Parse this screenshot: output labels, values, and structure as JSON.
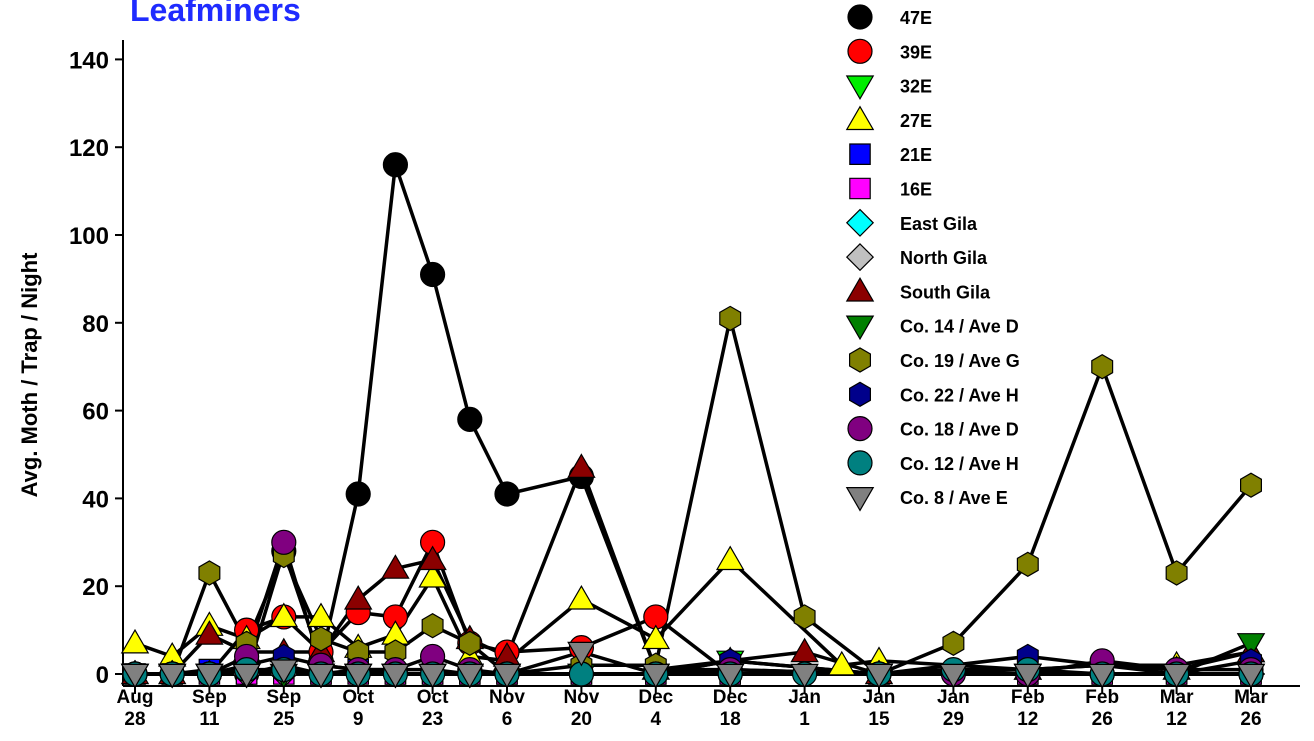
{
  "chart_data": {
    "type": "line",
    "title": "Leafminers",
    "ylabel": "Avg. Moth / Trap / Night",
    "xlabel": "",
    "ylim": [
      0,
      145
    ],
    "yticks": [
      0,
      20,
      40,
      60,
      80,
      100,
      120,
      140
    ],
    "grid": false,
    "legend_position": "top-right",
    "x_tick_labels": [
      {
        "pos": 0,
        "line1": "Aug",
        "line2": "28"
      },
      {
        "pos": 2,
        "line1": "Sep",
        "line2": "11"
      },
      {
        "pos": 4,
        "line1": "Sep",
        "line2": "25"
      },
      {
        "pos": 6,
        "line1": "Oct",
        "line2": "9"
      },
      {
        "pos": 8,
        "line1": "Oct",
        "line2": "23"
      },
      {
        "pos": 10,
        "line1": "Nov",
        "line2": "6"
      },
      {
        "pos": 12,
        "line1": "Nov",
        "line2": "20"
      },
      {
        "pos": 14,
        "line1": "Dec",
        "line2": "4"
      },
      {
        "pos": 16,
        "line1": "Dec",
        "line2": "18"
      },
      {
        "pos": 18,
        "line1": "Jan",
        "line2": "1"
      },
      {
        "pos": 20,
        "line1": "Jan",
        "line2": "15"
      },
      {
        "pos": 22,
        "line1": "Jan",
        "line2": "29"
      },
      {
        "pos": 24,
        "line1": "Feb",
        "line2": "12"
      },
      {
        "pos": 26,
        "line1": "Feb",
        "line2": "26"
      },
      {
        "pos": 28,
        "line1": "Mar",
        "line2": "12"
      },
      {
        "pos": 30,
        "line1": "Mar",
        "line2": "26"
      }
    ],
    "series": [
      {
        "name": "47E",
        "color": "#000000",
        "marker": "circle",
        "points": [
          [
            0,
            0
          ],
          [
            1,
            0
          ],
          [
            2,
            0
          ],
          [
            3,
            0
          ],
          [
            4,
            28
          ],
          [
            5,
            3
          ],
          [
            6,
            41
          ],
          [
            7,
            116
          ],
          [
            8,
            91
          ],
          [
            9,
            58
          ],
          [
            10,
            41
          ],
          [
            12,
            45
          ],
          [
            14,
            1
          ],
          [
            16,
            1
          ],
          [
            20,
            0
          ],
          [
            24,
            0
          ],
          [
            26,
            0
          ],
          [
            28,
            0
          ],
          [
            30,
            0
          ]
        ]
      },
      {
        "name": "39E",
        "color": "#ff0000",
        "marker": "circle",
        "points": [
          [
            0,
            0
          ],
          [
            1,
            0
          ],
          [
            2,
            0
          ],
          [
            3,
            10
          ],
          [
            4,
            13
          ],
          [
            5,
            5
          ],
          [
            6,
            14
          ],
          [
            7,
            13
          ],
          [
            8,
            30
          ],
          [
            9,
            7
          ],
          [
            10,
            5
          ],
          [
            12,
            6
          ],
          [
            14,
            13
          ],
          [
            16,
            0
          ],
          [
            20,
            0
          ],
          [
            24,
            0
          ],
          [
            26,
            0
          ],
          [
            28,
            0
          ],
          [
            30,
            0
          ]
        ]
      },
      {
        "name": "32E",
        "color": "#00ee00",
        "marker": "triangle-down",
        "points": [
          [
            0,
            0
          ],
          [
            1,
            0
          ],
          [
            2,
            0
          ],
          [
            3,
            0
          ],
          [
            4,
            1
          ],
          [
            5,
            0
          ],
          [
            6,
            0
          ],
          [
            7,
            0
          ],
          [
            8,
            0
          ],
          [
            9,
            0
          ],
          [
            10,
            0
          ],
          [
            12,
            0
          ],
          [
            14,
            0
          ],
          [
            16,
            3
          ],
          [
            20,
            0
          ],
          [
            24,
            0
          ],
          [
            26,
            0
          ],
          [
            28,
            0
          ],
          [
            30,
            0
          ]
        ]
      },
      {
        "name": "27E",
        "color": "#ffff00",
        "marker": "triangle-up",
        "points": [
          [
            0,
            7
          ],
          [
            1,
            4
          ],
          [
            2,
            11
          ],
          [
            3,
            8
          ],
          [
            4,
            13
          ],
          [
            5,
            13
          ],
          [
            6,
            6
          ],
          [
            7,
            9
          ],
          [
            8,
            22
          ],
          [
            9,
            4
          ],
          [
            10,
            3
          ],
          [
            12,
            17
          ],
          [
            14,
            8
          ],
          [
            16,
            26
          ],
          [
            19,
            2
          ],
          [
            20,
            3
          ],
          [
            24,
            1
          ],
          [
            26,
            2
          ],
          [
            28,
            2
          ],
          [
            30,
            5
          ]
        ]
      },
      {
        "name": "21E",
        "color": "#0000ff",
        "marker": "square",
        "points": [
          [
            0,
            0
          ],
          [
            1,
            0
          ],
          [
            2,
            1
          ],
          [
            3,
            0
          ],
          [
            4,
            2
          ],
          [
            5,
            0
          ],
          [
            6,
            1
          ],
          [
            7,
            0
          ],
          [
            8,
            0
          ],
          [
            9,
            0
          ],
          [
            10,
            0
          ],
          [
            12,
            0
          ],
          [
            14,
            0
          ],
          [
            16,
            0
          ],
          [
            20,
            0
          ],
          [
            24,
            0
          ],
          [
            26,
            0
          ],
          [
            28,
            0
          ],
          [
            30,
            0
          ]
        ]
      },
      {
        "name": "16E",
        "color": "#ff00ff",
        "marker": "square",
        "points": [
          [
            0,
            0
          ],
          [
            1,
            0
          ],
          [
            2,
            0
          ],
          [
            3,
            0
          ],
          [
            4,
            0
          ],
          [
            5,
            0
          ],
          [
            6,
            0
          ],
          [
            7,
            0
          ],
          [
            8,
            0
          ],
          [
            9,
            0
          ],
          [
            10,
            0
          ],
          [
            12,
            0
          ],
          [
            14,
            0
          ],
          [
            16,
            0
          ],
          [
            20,
            0
          ],
          [
            24,
            0
          ],
          [
            26,
            0
          ],
          [
            28,
            0
          ],
          [
            30,
            0
          ]
        ]
      },
      {
        "name": "East Gila",
        "color": "#00ffff",
        "marker": "diamond",
        "points": [
          [
            0,
            0
          ],
          [
            1,
            0
          ],
          [
            2,
            0
          ],
          [
            3,
            0
          ],
          [
            4,
            0
          ],
          [
            5,
            0
          ],
          [
            6,
            0
          ],
          [
            7,
            0
          ],
          [
            8,
            0
          ],
          [
            9,
            0
          ],
          [
            10,
            0
          ],
          [
            12,
            0
          ],
          [
            14,
            0
          ],
          [
            16,
            0
          ],
          [
            20,
            0
          ],
          [
            24,
            0
          ],
          [
            26,
            0
          ],
          [
            28,
            0
          ],
          [
            30,
            0
          ]
        ]
      },
      {
        "name": "North Gila",
        "color": "#c0c0c0",
        "marker": "diamond",
        "points": [
          [
            0,
            0
          ],
          [
            1,
            0
          ],
          [
            2,
            0
          ],
          [
            3,
            0
          ],
          [
            4,
            0
          ],
          [
            5,
            0
          ],
          [
            6,
            0
          ],
          [
            7,
            0
          ],
          [
            8,
            0
          ],
          [
            9,
            0
          ],
          [
            10,
            0
          ],
          [
            12,
            0
          ],
          [
            14,
            0
          ],
          [
            16,
            0
          ],
          [
            20,
            0
          ],
          [
            24,
            0
          ],
          [
            26,
            0
          ],
          [
            28,
            0
          ],
          [
            30,
            0
          ]
        ]
      },
      {
        "name": "South Gila",
        "color": "#8b0000",
        "marker": "triangle-up",
        "points": [
          [
            0,
            0
          ],
          [
            1,
            0
          ],
          [
            2,
            9
          ],
          [
            3,
            5
          ],
          [
            4,
            5
          ],
          [
            5,
            5
          ],
          [
            6,
            17
          ],
          [
            7,
            24
          ],
          [
            8,
            26
          ],
          [
            9,
            8
          ],
          [
            10,
            4
          ],
          [
            12,
            47
          ],
          [
            14,
            1
          ],
          [
            16,
            3
          ],
          [
            18,
            5
          ],
          [
            20,
            0
          ],
          [
            24,
            1
          ],
          [
            26,
            2
          ],
          [
            28,
            1
          ],
          [
            30,
            5
          ]
        ]
      },
      {
        "name": "Co. 14 / Ave D",
        "color": "#008000",
        "marker": "triangle-down",
        "points": [
          [
            0,
            0
          ],
          [
            1,
            0
          ],
          [
            2,
            0
          ],
          [
            3,
            0
          ],
          [
            4,
            0
          ],
          [
            5,
            0
          ],
          [
            6,
            0
          ],
          [
            7,
            0
          ],
          [
            8,
            0
          ],
          [
            9,
            0
          ],
          [
            10,
            0
          ],
          [
            12,
            0
          ],
          [
            14,
            0
          ],
          [
            16,
            0
          ],
          [
            20,
            0
          ],
          [
            24,
            0
          ],
          [
            26,
            0
          ],
          [
            28,
            0
          ],
          [
            30,
            7
          ]
        ]
      },
      {
        "name": "Co. 19 / Ave G",
        "color": "#808000",
        "marker": "hexagon",
        "points": [
          [
            0,
            0
          ],
          [
            1,
            0
          ],
          [
            2,
            23
          ],
          [
            3,
            7
          ],
          [
            4,
            27
          ],
          [
            5,
            8
          ],
          [
            6,
            5
          ],
          [
            7,
            5
          ],
          [
            8,
            11
          ],
          [
            9,
            7
          ],
          [
            10,
            0
          ],
          [
            12,
            2
          ],
          [
            14,
            2
          ],
          [
            16,
            81
          ],
          [
            18,
            13
          ],
          [
            20,
            0
          ],
          [
            22,
            7
          ],
          [
            24,
            25
          ],
          [
            26,
            70
          ],
          [
            28,
            23
          ],
          [
            30,
            43
          ]
        ]
      },
      {
        "name": "Co. 22 / Ave H",
        "color": "#00008b",
        "marker": "hexagon",
        "points": [
          [
            0,
            0
          ],
          [
            1,
            0
          ],
          [
            2,
            0
          ],
          [
            3,
            2
          ],
          [
            4,
            4
          ],
          [
            5,
            2
          ],
          [
            6,
            1
          ],
          [
            7,
            1
          ],
          [
            8,
            1
          ],
          [
            9,
            0
          ],
          [
            10,
            0
          ],
          [
            12,
            0
          ],
          [
            14,
            0
          ],
          [
            16,
            3
          ],
          [
            20,
            0
          ],
          [
            24,
            4
          ],
          [
            26,
            2
          ],
          [
            28,
            0
          ],
          [
            30,
            3
          ]
        ]
      },
      {
        "name": "Co. 18 / Ave D",
        "color": "#800080",
        "marker": "circle",
        "points": [
          [
            0,
            0
          ],
          [
            1,
            0
          ],
          [
            2,
            0
          ],
          [
            3,
            4
          ],
          [
            4,
            30
          ],
          [
            5,
            2
          ],
          [
            6,
            1
          ],
          [
            7,
            1
          ],
          [
            8,
            4
          ],
          [
            9,
            1
          ],
          [
            10,
            0
          ],
          [
            12,
            0
          ],
          [
            14,
            0
          ],
          [
            16,
            1
          ],
          [
            20,
            0
          ],
          [
            22,
            0
          ],
          [
            24,
            0
          ],
          [
            26,
            3
          ],
          [
            28,
            1
          ],
          [
            30,
            1
          ]
        ]
      },
      {
        "name": "Co. 12 / Ave H",
        "color": "#008080",
        "marker": "circle",
        "points": [
          [
            0,
            0
          ],
          [
            1,
            0
          ],
          [
            2,
            0
          ],
          [
            3,
            1
          ],
          [
            4,
            1
          ],
          [
            5,
            0
          ],
          [
            6,
            0
          ],
          [
            7,
            0
          ],
          [
            8,
            0
          ],
          [
            9,
            0
          ],
          [
            10,
            0
          ],
          [
            12,
            0
          ],
          [
            14,
            0
          ],
          [
            16,
            0
          ],
          [
            18,
            0
          ],
          [
            20,
            0
          ],
          [
            22,
            1
          ],
          [
            24,
            1
          ],
          [
            26,
            0
          ],
          [
            28,
            0
          ],
          [
            30,
            0
          ]
        ]
      },
      {
        "name": "Co. 8 / Ave E",
        "color": "#808080",
        "marker": "triangle-down",
        "points": [
          [
            0,
            0
          ],
          [
            1,
            0
          ],
          [
            2,
            0
          ],
          [
            3,
            0
          ],
          [
            4,
            1
          ],
          [
            5,
            0
          ],
          [
            6,
            0
          ],
          [
            7,
            0
          ],
          [
            8,
            0
          ],
          [
            9,
            0
          ],
          [
            10,
            0
          ],
          [
            12,
            5
          ],
          [
            14,
            0
          ],
          [
            16,
            0
          ],
          [
            18,
            0
          ],
          [
            20,
            0
          ],
          [
            22,
            0
          ],
          [
            24,
            0
          ],
          [
            26,
            0
          ],
          [
            28,
            0
          ],
          [
            30,
            0
          ]
        ]
      }
    ]
  }
}
